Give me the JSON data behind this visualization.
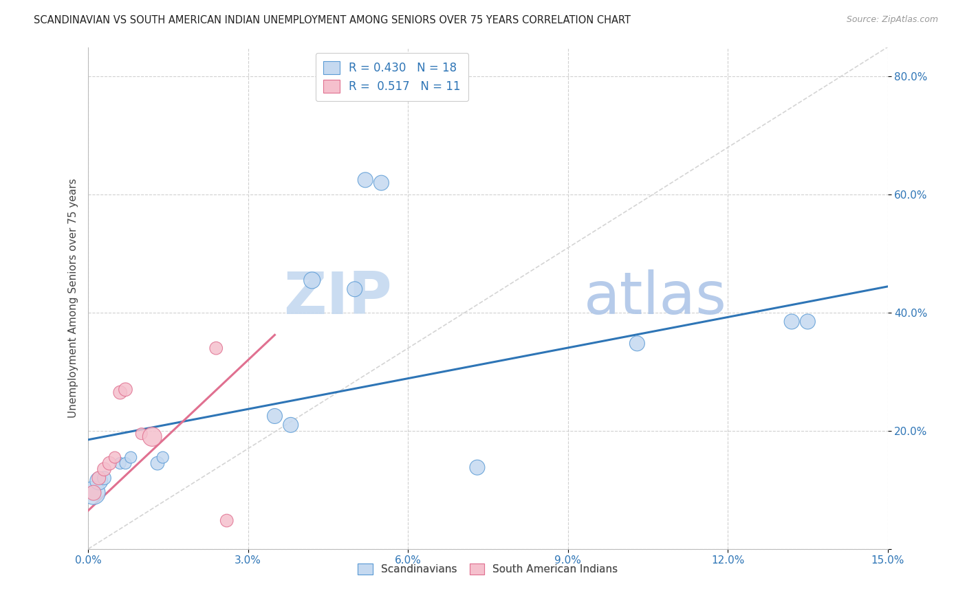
{
  "title": "SCANDINAVIAN VS SOUTH AMERICAN INDIAN UNEMPLOYMENT AMONG SENIORS OVER 75 YEARS CORRELATION CHART",
  "source": "Source: ZipAtlas.com",
  "ylabel": "Unemployment Among Seniors over 75 years",
  "xlim": [
    0.0,
    0.15
  ],
  "ylim": [
    0.0,
    0.85
  ],
  "xticks": [
    0.0,
    0.03,
    0.06,
    0.09,
    0.12,
    0.15
  ],
  "xticklabels": [
    "0.0%",
    "3.0%",
    "6.0%",
    "9.0%",
    "12.0%",
    "15.0%"
  ],
  "yticks": [
    0.0,
    0.2,
    0.4,
    0.6,
    0.8
  ],
  "yticklabels": [
    "",
    "20.0%",
    "40.0%",
    "60.0%",
    "80.0%"
  ],
  "legend_r1_label": "R = 0.430   N = 18",
  "legend_r2_label": "R =  0.517   N = 11",
  "scandinavian_fill": "#c5d9f0",
  "scandinavian_edge": "#5b9bd5",
  "south_american_fill": "#f5c0cd",
  "south_american_edge": "#e07090",
  "blue_line_color": "#2e75b6",
  "pink_line_color": "#e07090",
  "diag_color": "#d0d0d0",
  "watermark_color": "#d8e8f5",
  "scandinavians_x": [
    0.001,
    0.002,
    0.003,
    0.006,
    0.007,
    0.008,
    0.013,
    0.014,
    0.035,
    0.038,
    0.042,
    0.05,
    0.052,
    0.055,
    0.073,
    0.103,
    0.132,
    0.135
  ],
  "scandinavians_y": [
    0.095,
    0.115,
    0.12,
    0.145,
    0.145,
    0.155,
    0.145,
    0.155,
    0.225,
    0.21,
    0.455,
    0.44,
    0.625,
    0.62,
    0.138,
    0.348,
    0.385,
    0.385
  ],
  "scandinavians_size": [
    600,
    350,
    200,
    150,
    150,
    150,
    200,
    150,
    250,
    250,
    300,
    250,
    250,
    250,
    250,
    250,
    250,
    250
  ],
  "south_americans_x": [
    0.001,
    0.002,
    0.003,
    0.004,
    0.005,
    0.006,
    0.007,
    0.01,
    0.012,
    0.024,
    0.026
  ],
  "south_americans_y": [
    0.095,
    0.12,
    0.135,
    0.145,
    0.155,
    0.265,
    0.27,
    0.195,
    0.19,
    0.34,
    0.048
  ],
  "south_americans_size": [
    250,
    200,
    200,
    200,
    150,
    200,
    200,
    150,
    400,
    180,
    180
  ],
  "blue_intercept": 0.185,
  "blue_slope": 1.73,
  "pink_intercept": 0.065,
  "pink_slope": 8.5
}
